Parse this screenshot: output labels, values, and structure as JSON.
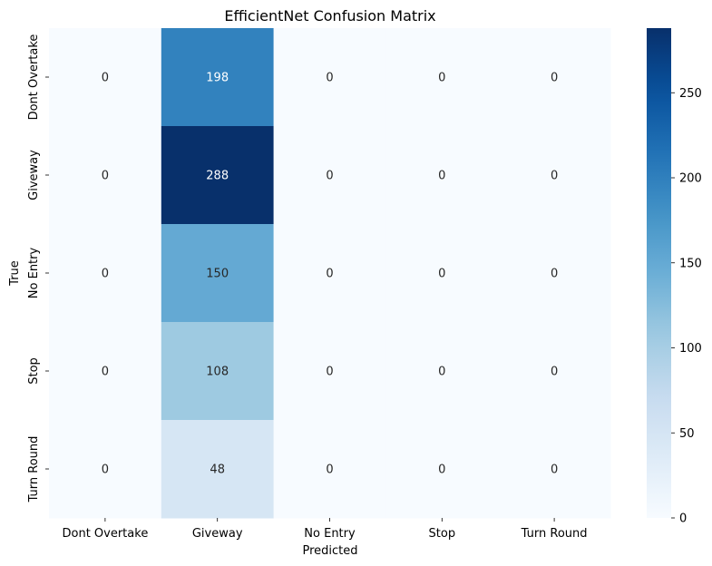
{
  "chart_data": {
    "type": "heatmap",
    "title": "EfficientNet Confusion Matrix",
    "xlabel": "Predicted",
    "ylabel": "True",
    "x_categories": [
      "Dont Overtake",
      "Giveway",
      "No Entry",
      "Stop",
      "Turn Round"
    ],
    "y_categories": [
      "Dont Overtake",
      "Giveway",
      "No Entry",
      "Stop",
      "Turn Round"
    ],
    "values": [
      [
        0,
        198,
        0,
        0,
        0
      ],
      [
        0,
        288,
        0,
        0,
        0
      ],
      [
        0,
        150,
        0,
        0,
        0
      ],
      [
        0,
        108,
        0,
        0,
        0
      ],
      [
        0,
        48,
        0,
        0,
        0
      ]
    ],
    "colormap": "Blues",
    "colorbar": {
      "range": [
        0,
        288
      ],
      "ticks": [
        0,
        50,
        100,
        150,
        200,
        250
      ]
    },
    "annotations": true
  }
}
